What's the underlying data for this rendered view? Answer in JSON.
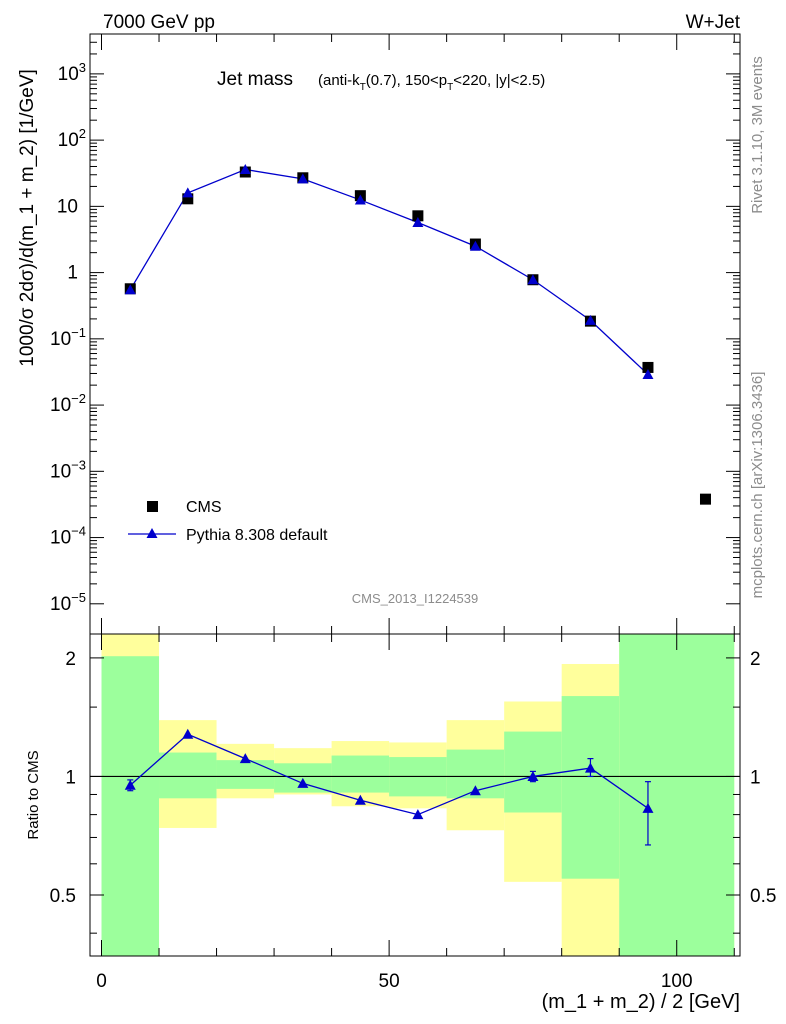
{
  "header": {
    "energy_label": "7000 GeV pp",
    "process_label": "W+Jet"
  },
  "side": {
    "rivet_label": "Rivet 3.1.10,  3M events",
    "source_label": "mcplots.cern.ch [arXiv:1306.3436]"
  },
  "chart_data": [
    {
      "type": "scatter",
      "title_main": "Jet mass",
      "title_sub": "(anti-k_T(0.7), 150<p_T<220, |y|<2.5)",
      "watermark": "CMS_2013_I1224539",
      "ylabel": "1000/σ 2dσ)/d(m_1 + m_2) [1/GeV]",
      "yscale": "log",
      "ylim": [
        3.5e-06,
        4000
      ],
      "xlim": [
        -2,
        111
      ],
      "y_ticks": [
        {
          "value": 1e-05,
          "label": "10",
          "exp": "−5"
        },
        {
          "value": 0.0001,
          "label": "10",
          "exp": "−4"
        },
        {
          "value": 0.001,
          "label": "10",
          "exp": "−3"
        },
        {
          "value": 0.01,
          "label": "10",
          "exp": "−2"
        },
        {
          "value": 0.1,
          "label": "10",
          "exp": "−1"
        },
        {
          "value": 1,
          "label": "1",
          "exp": ""
        },
        {
          "value": 10,
          "label": "10",
          "exp": ""
        },
        {
          "value": 100,
          "label": "10",
          "exp": "2"
        },
        {
          "value": 1000,
          "label": "10",
          "exp": "3"
        }
      ],
      "legend_position": "lower-left",
      "series": [
        {
          "name": "CMS",
          "marker": "square",
          "color": "#000000",
          "x": [
            5,
            15,
            25,
            35,
            45,
            55,
            65,
            75,
            85,
            95,
            105
          ],
          "y": [
            0.57,
            13.0,
            33.0,
            27.0,
            14.5,
            7.2,
            2.7,
            0.78,
            0.185,
            0.037,
            0.00038
          ]
        },
        {
          "name": "Pythia 8.308 default",
          "marker": "triangle",
          "color": "#0000cc",
          "x": [
            5,
            15,
            25,
            35,
            45,
            55,
            65,
            75,
            85,
            95
          ],
          "y": [
            0.55,
            16.0,
            36.0,
            26.0,
            12.5,
            5.7,
            2.5,
            0.78,
            0.19,
            0.029
          ]
        }
      ]
    },
    {
      "type": "scatter",
      "ylabel": "Ratio to CMS",
      "xlabel": "(m_1 + m_2) / 2 [GeV]",
      "ylim": [
        0.35,
        2.3
      ],
      "xlim": [
        -2,
        111
      ],
      "x_ticks": [
        0,
        50,
        100
      ],
      "y_ticks": [
        0.5,
        1,
        2
      ],
      "reference_line": 1,
      "uncertainty_bands": {
        "bins": [
          [
            0,
            10
          ],
          [
            10,
            20
          ],
          [
            20,
            30
          ],
          [
            30,
            40
          ],
          [
            40,
            50
          ],
          [
            50,
            60
          ],
          [
            60,
            70
          ],
          [
            70,
            80
          ],
          [
            80,
            90
          ],
          [
            90,
            110
          ]
        ],
        "stat_sys_yellow": [
          [
            0.35,
            2.3
          ],
          [
            0.74,
            1.39
          ],
          [
            0.88,
            1.21
          ],
          [
            0.9,
            1.18
          ],
          [
            0.84,
            1.23
          ],
          [
            0.83,
            1.22
          ],
          [
            0.73,
            1.39
          ],
          [
            0.54,
            1.55
          ],
          [
            0.35,
            1.93
          ],
          [
            0.35,
            2.3
          ]
        ],
        "stat_green": [
          [
            0.35,
            2.02
          ],
          [
            0.88,
            1.15
          ],
          [
            0.93,
            1.1
          ],
          [
            0.91,
            1.08
          ],
          [
            0.91,
            1.13
          ],
          [
            0.89,
            1.12
          ],
          [
            0.88,
            1.17
          ],
          [
            0.81,
            1.3
          ],
          [
            0.55,
            1.6
          ],
          [
            0.35,
            2.3
          ]
        ],
        "colors": {
          "green": "#9cff9c",
          "yellow": "#ffff9c"
        }
      },
      "series": [
        {
          "name": "Pythia 8.308 default",
          "color": "#0000cc",
          "x": [
            5,
            15,
            25,
            35,
            45,
            55,
            65,
            75,
            85,
            95
          ],
          "y": [
            0.95,
            1.28,
            1.11,
            0.96,
            0.87,
            0.8,
            0.92,
            1.0,
            1.05,
            0.83
          ],
          "err_low": [
            0.03,
            0,
            0,
            0,
            0,
            0,
            0,
            0.03,
            0.05,
            0.16
          ],
          "err_high": [
            0.03,
            0,
            0,
            0,
            0,
            0,
            0,
            0.03,
            0.06,
            0.14
          ]
        }
      ]
    }
  ]
}
